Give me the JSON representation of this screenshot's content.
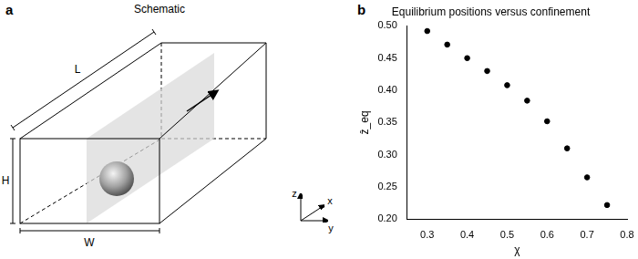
{
  "schematic": {
    "panel_label": "a",
    "title": "Schematic",
    "dimensions": {
      "length": "L",
      "height": "H",
      "width": "W"
    },
    "axes": [
      "z",
      "x",
      "y"
    ]
  },
  "chart_data": {
    "panel_label": "b",
    "type": "scatter",
    "title": "Equilibrium positions versus confinement",
    "x_label": "χ",
    "y_label": "ẑ_eq",
    "x": [
      0.3,
      0.35,
      0.4,
      0.45,
      0.5,
      0.55,
      0.6,
      0.65,
      0.7,
      0.75
    ],
    "values": [
      0.492,
      0.471,
      0.45,
      0.43,
      0.408,
      0.384,
      0.352,
      0.31,
      0.265,
      0.222
    ],
    "color": "#000000",
    "marker": "circle",
    "xlim": [
      0.25,
      0.8
    ],
    "xticks": [
      0.3,
      0.4,
      0.5,
      0.6,
      0.7,
      0.8
    ],
    "ylim": [
      0.2,
      0.5
    ],
    "yticks": [
      {
        "value": 0.2,
        "label": "0.20"
      },
      0.25,
      {
        "value": 0.3,
        "label": "0.30"
      },
      0.35,
      {
        "value": 0.4,
        "label": "0.40"
      },
      0.45,
      {
        "value": 0.5,
        "label": "0.50"
      }
    ],
    "grid": false
  }
}
